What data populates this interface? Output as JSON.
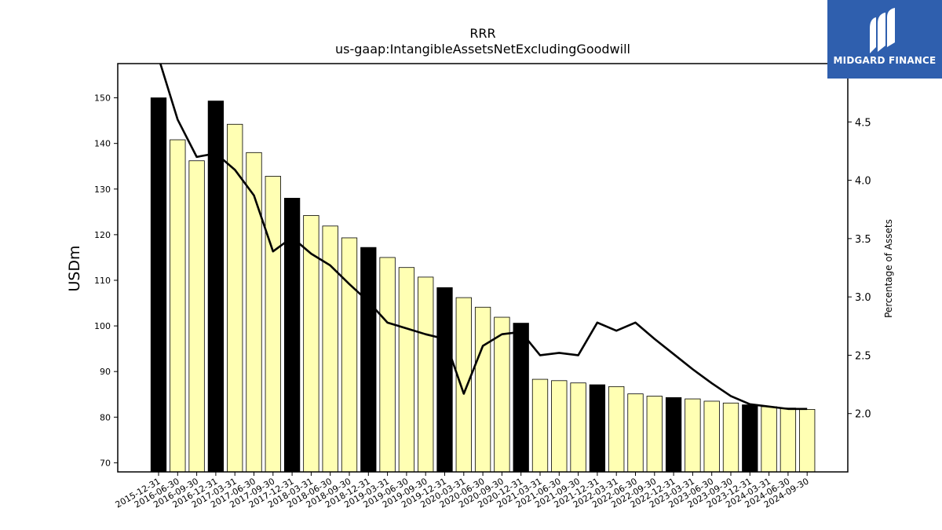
{
  "chart_data": {
    "type": "bar",
    "title": "RRR",
    "subtitle": "us-gaap:IntangibleAssetsNetExcludingGoodwill",
    "ylabel": "USDm",
    "y2label": "Percentage of Assets",
    "ylim": [
      68,
      157.5
    ],
    "y2lim": [
      1.5,
      5.0
    ],
    "yticks": [
      70,
      80,
      90,
      100,
      110,
      120,
      130,
      140,
      150
    ],
    "y2ticks": [
      2.0,
      2.5,
      3.0,
      3.5,
      4.0,
      4.5
    ],
    "grid": false,
    "categories": [
      "2015-12-31",
      "2016-06-30",
      "2016-09-30",
      "2016-12-31",
      "2017-03-31",
      "2017-06-30",
      "2017-09-30",
      "2017-12-31",
      "2018-03-31",
      "2018-06-30",
      "2018-09-30",
      "2018-12-31",
      "2019-03-31",
      "2019-06-30",
      "2019-09-30",
      "2019-12-31",
      "2020-03-31",
      "2020-06-30",
      "2020-09-30",
      "2020-12-31",
      "2021-03-31",
      "2021-06-30",
      "2021-09-30",
      "2021-12-31",
      "2022-03-31",
      "2022-06-30",
      "2022-09-30",
      "2022-12-31",
      "2023-03-31",
      "2023-06-30",
      "2023-09-30",
      "2023-12-31",
      "2024-03-31",
      "2024-06-30",
      "2024-09-30"
    ],
    "series": [
      {
        "type": "bar",
        "axis": "left",
        "values": [
          150.0,
          140.8,
          136.2,
          149.3,
          144.2,
          138.0,
          132.8,
          128.0,
          124.2,
          121.9,
          119.3,
          117.2,
          115.0,
          112.8,
          110.7,
          108.4,
          106.2,
          104.1,
          101.9,
          100.6,
          88.3,
          88.0,
          87.5,
          87.1,
          86.7,
          85.1,
          84.6,
          84.3,
          84.0,
          83.5,
          83.1,
          82.7,
          82.3,
          82.0,
          81.7
        ],
        "highlight_color": "#000000",
        "color": "#ffffb3",
        "highlighted": [
          true,
          false,
          false,
          true,
          false,
          false,
          false,
          true,
          false,
          false,
          false,
          true,
          false,
          false,
          false,
          true,
          false,
          false,
          false,
          true,
          false,
          false,
          false,
          true,
          false,
          false,
          false,
          true,
          false,
          false,
          false,
          true,
          false,
          false,
          false
        ]
      },
      {
        "type": "line",
        "axis": "right",
        "color": "#000000",
        "values": [
          5.05,
          4.52,
          4.2,
          4.23,
          4.09,
          3.87,
          3.39,
          3.51,
          3.37,
          3.27,
          3.11,
          2.96,
          2.78,
          2.73,
          2.68,
          2.64,
          2.17,
          2.58,
          2.68,
          2.7,
          2.5,
          2.52,
          2.5,
          2.78,
          2.71,
          2.78,
          2.64,
          2.51,
          2.38,
          2.26,
          2.15,
          2.08,
          2.06,
          2.04,
          2.04
        ]
      }
    ]
  },
  "logo": {
    "text": "MIDGARD FINANCE",
    "bg_color": "#2f5fae"
  }
}
